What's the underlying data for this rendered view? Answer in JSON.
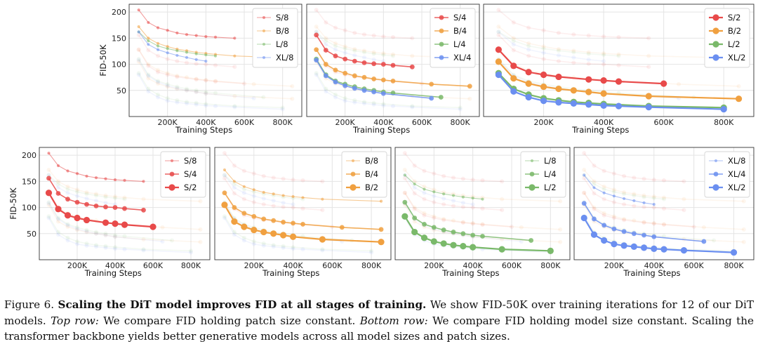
{
  "colors": {
    "S": "#e84a4a",
    "B": "#f0a040",
    "L": "#7ab96a",
    "XL": "#6b8ff0",
    "grid": "#e4e4e4",
    "frame": "#333333"
  },
  "chart_data": {
    "type": "line",
    "xlabel": "Training Steps",
    "ylabel": "FID-50K",
    "x_tick_labels": [
      "200K",
      "400K",
      "600K",
      "800K"
    ],
    "y_tick_labels": [
      "50",
      "100",
      "150",
      "200"
    ],
    "x": [
      50000,
      100000,
      150000,
      200000,
      250000,
      300000,
      350000,
      400000,
      450000,
      550000,
      650000,
      850000
    ],
    "series": [
      {
        "name": "S/8",
        "group": "S",
        "patch": 8,
        "x": [
          50000,
          100000,
          150000,
          200000,
          250000,
          300000,
          350000,
          400000,
          450000,
          550000
        ],
        "values": [
          204,
          180,
          170,
          165,
          160,
          157,
          155,
          153,
          152,
          150
        ]
      },
      {
        "name": "S/4",
        "group": "S",
        "patch": 4,
        "x": [
          50000,
          100000,
          150000,
          200000,
          250000,
          300000,
          350000,
          400000,
          450000,
          550000
        ],
        "values": [
          156,
          127,
          116,
          110,
          106,
          103,
          101,
          100,
          98,
          95
        ]
      },
      {
        "name": "S/2",
        "group": "S",
        "patch": 2,
        "x": [
          50000,
          100000,
          150000,
          200000,
          250000,
          350000,
          400000,
          450000,
          600000
        ],
        "values": [
          128,
          97,
          85,
          80,
          76,
          71,
          69,
          67,
          63
        ]
      },
      {
        "name": "B/8",
        "group": "B",
        "patch": 8,
        "x": [
          50000,
          100000,
          150000,
          200000,
          250000,
          300000,
          350000,
          400000,
          450000,
          550000,
          850000
        ],
        "values": [
          172,
          150,
          140,
          134,
          129,
          126,
          123,
          121,
          119,
          116,
          112
        ]
      },
      {
        "name": "B/4",
        "group": "B",
        "patch": 4,
        "x": [
          50000,
          100000,
          150000,
          200000,
          250000,
          300000,
          350000,
          400000,
          450000,
          650000,
          850000
        ],
        "values": [
          128,
          100,
          89,
          83,
          78,
          75,
          72,
          70,
          68,
          62,
          58
        ]
      },
      {
        "name": "B/2",
        "group": "B",
        "patch": 2,
        "x": [
          50000,
          100000,
          150000,
          200000,
          250000,
          300000,
          350000,
          400000,
          550000,
          850000
        ],
        "values": [
          105,
          73,
          63,
          57,
          53,
          50,
          47,
          44,
          39,
          34
        ]
      },
      {
        "name": "L/8",
        "group": "L",
        "patch": 8,
        "x": [
          50000,
          100000,
          150000,
          200000,
          250000,
          300000,
          350000,
          400000,
          450000
        ],
        "values": [
          162,
          145,
          135,
          130,
          126,
          123,
          120,
          118,
          116
        ]
      },
      {
        "name": "L/4",
        "group": "L",
        "patch": 4,
        "x": [
          50000,
          100000,
          150000,
          200000,
          250000,
          300000,
          350000,
          400000,
          450000,
          700000
        ],
        "values": [
          110,
          80,
          68,
          62,
          57,
          53,
          50,
          47,
          45,
          37
        ]
      },
      {
        "name": "L/2",
        "group": "L",
        "patch": 2,
        "x": [
          50000,
          100000,
          150000,
          200000,
          250000,
          300000,
          350000,
          400000,
          550000,
          800000
        ],
        "values": [
          83,
          53,
          42,
          35,
          31,
          28,
          26,
          24,
          20,
          17
        ]
      },
      {
        "name": "XL/8",
        "group": "XL",
        "patch": 8,
        "x": [
          50000,
          100000,
          150000,
          200000,
          250000,
          300000,
          350000,
          400000
        ],
        "values": [
          162,
          138,
          128,
          122,
          117,
          113,
          109,
          106
        ]
      },
      {
        "name": "XL/4",
        "group": "XL",
        "patch": 4,
        "x": [
          50000,
          100000,
          150000,
          200000,
          250000,
          300000,
          350000,
          400000,
          650000
        ],
        "values": [
          108,
          78,
          66,
          59,
          54,
          50,
          47,
          44,
          35
        ]
      },
      {
        "name": "XL/2",
        "group": "XL",
        "patch": 2,
        "x": [
          50000,
          100000,
          150000,
          200000,
          250000,
          300000,
          350000,
          400000,
          450000,
          550000,
          800000
        ],
        "values": [
          80,
          48,
          37,
          30,
          27,
          25,
          23,
          21,
          20,
          18,
          14
        ]
      }
    ],
    "panels": [
      {
        "row": "top",
        "legend_series": [
          "S/8",
          "B/8",
          "L/8",
          "XL/8"
        ]
      },
      {
        "row": "top",
        "legend_series": [
          "S/4",
          "B/4",
          "L/4",
          "XL/4"
        ]
      },
      {
        "row": "top",
        "legend_series": [
          "S/2",
          "B/2",
          "L/2",
          "XL/2"
        ]
      },
      {
        "row": "bottom",
        "legend_series": [
          "S/8",
          "S/4",
          "S/2"
        ]
      },
      {
        "row": "bottom",
        "legend_series": [
          "B/8",
          "B/4",
          "B/2"
        ]
      },
      {
        "row": "bottom",
        "legend_series": [
          "L/8",
          "L/4",
          "L/2"
        ]
      },
      {
        "row": "bottom",
        "legend_series": [
          "XL/8",
          "XL/4",
          "XL/2"
        ]
      }
    ],
    "xlim": [
      0,
      900000
    ],
    "ylim": [
      0,
      215
    ],
    "grid": true,
    "legend_position": "top-right"
  },
  "caption": {
    "label": "Figure 6.",
    "bold": "Scaling the DiT model improves FID at all stages of training.",
    "text1": "We show FID-50K over training iterations for 12 of our DiT models.",
    "top_label": "Top row:",
    "text2": "We compare FID holding patch size constant.",
    "bottom_label": "Bottom row:",
    "text3": "We compare FID holding model size constant. Scaling the transformer backbone yields better generative models across all model sizes and patch sizes."
  }
}
